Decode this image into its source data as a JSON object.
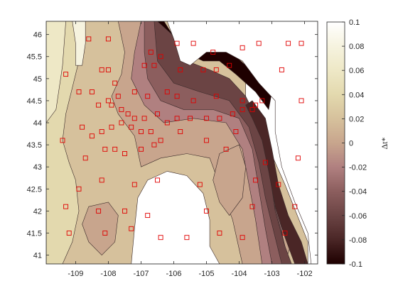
{
  "chart_data": {
    "type": "heatmap",
    "subtype": "filled-contour-map",
    "title": "",
    "xlabel": "",
    "ylabel": "",
    "xlim": [
      -109.9,
      -101.6
    ],
    "ylim": [
      40.8,
      46.3
    ],
    "x_ticks": [
      -109,
      -108,
      -107,
      -106,
      -105,
      -104,
      -103,
      -102
    ],
    "y_ticks": [
      41,
      41.5,
      42,
      42.5,
      43,
      43.5,
      44,
      44.5,
      45,
      45.5,
      46
    ],
    "colorbar": {
      "label": "Δt*",
      "range": [
        -0.1,
        0.1
      ],
      "ticks": [
        0.1,
        0.08,
        0.06,
        0.04,
        0.02,
        0,
        -0.02,
        -0.04,
        -0.06,
        -0.08,
        -0.1
      ],
      "colormap": "pink",
      "stops": [
        {
          "v": -0.1,
          "color": "#1e0000"
        },
        {
          "v": -0.08,
          "color": "#4a2626"
        },
        {
          "v": -0.06,
          "color": "#6b4444"
        },
        {
          "v": -0.04,
          "color": "#8c5e5e"
        },
        {
          "v": -0.02,
          "color": "#b08080"
        },
        {
          "v": 0.0,
          "color": "#c8a58d"
        },
        {
          "v": 0.02,
          "color": "#d6c19c"
        },
        {
          "v": 0.04,
          "color": "#e3d9ae"
        },
        {
          "v": 0.06,
          "color": "#eee8c6"
        },
        {
          "v": 0.08,
          "color": "#f6f3df"
        },
        {
          "v": 0.1,
          "color": "#ffffff"
        }
      ]
    },
    "contour_regions": [
      {
        "name": "background",
        "level": 0.02,
        "poly": [
          [
            -109.9,
            40.8
          ],
          [
            -109.9,
            46.3
          ],
          [
            -103.8,
            46.3
          ],
          [
            -103.8,
            44.5
          ],
          [
            -103.2,
            43.6
          ],
          [
            -102.6,
            42.6
          ],
          [
            -101.9,
            41.3
          ],
          [
            -101.9,
            40.8
          ]
        ]
      },
      {
        "name": "west-light-band",
        "level": 0.04,
        "poly": [
          [
            -109.9,
            40.8
          ],
          [
            -109.9,
            46.3
          ],
          [
            -108.9,
            46.3
          ],
          [
            -108.9,
            45.4
          ],
          [
            -109.1,
            44.8
          ],
          [
            -109.3,
            44.2
          ],
          [
            -109.4,
            43.6
          ],
          [
            -109.2,
            43.1
          ],
          [
            -109.0,
            42.7
          ],
          [
            -108.9,
            42.0
          ],
          [
            -109.1,
            41.3
          ],
          [
            -109.4,
            40.8
          ]
        ]
      },
      {
        "name": "west-lighter-band",
        "level": 0.06,
        "poly": [
          [
            -109.9,
            40.8
          ],
          [
            -109.9,
            46.3
          ],
          [
            -109.3,
            46.3
          ],
          [
            -109.4,
            45.3
          ],
          [
            -109.5,
            44.8
          ],
          [
            -109.6,
            44.3
          ],
          [
            -109.9,
            44.0
          ]
        ]
      },
      {
        "name": "northwest-strip",
        "level": 0.08,
        "poly": [
          [
            -109.1,
            46.3
          ],
          [
            -108.7,
            46.3
          ],
          [
            -108.7,
            45.8
          ],
          [
            -108.8,
            45.3
          ],
          [
            -109.0,
            45.3
          ],
          [
            -109.0,
            45.8
          ]
        ]
      },
      {
        "name": "central-pink",
        "level": 0.0,
        "poly": [
          [
            -107.7,
            46.3
          ],
          [
            -106.6,
            46.3
          ],
          [
            -106.4,
            45.4
          ],
          [
            -105.9,
            44.8
          ],
          [
            -105.1,
            44.7
          ],
          [
            -104.6,
            44.9
          ],
          [
            -104.4,
            44.8
          ],
          [
            -104.0,
            44.5
          ],
          [
            -103.6,
            44.2
          ],
          [
            -103.3,
            43.4
          ],
          [
            -103.0,
            42.5
          ],
          [
            -102.7,
            41.8
          ],
          [
            -102.4,
            41.3
          ],
          [
            -102.6,
            40.8
          ],
          [
            -103.9,
            40.8
          ],
          [
            -104.2,
            41.8
          ],
          [
            -104.6,
            42.6
          ],
          [
            -104.9,
            43.2
          ],
          [
            -105.6,
            43.3
          ],
          [
            -106.4,
            43.2
          ],
          [
            -107.0,
            43.0
          ],
          [
            -107.2,
            43.7
          ],
          [
            -107.7,
            44.2
          ],
          [
            -107.9,
            44.6
          ],
          [
            -107.6,
            45.1
          ],
          [
            -107.5,
            45.6
          ]
        ]
      },
      {
        "name": "north-dark-band",
        "level": -0.02,
        "poly": [
          [
            -107.0,
            46.3
          ],
          [
            -106.6,
            46.3
          ],
          [
            -106.2,
            45.6
          ],
          [
            -105.6,
            45.1
          ],
          [
            -105.0,
            45.0
          ],
          [
            -104.5,
            45.0
          ],
          [
            -104.0,
            44.6
          ],
          [
            -103.5,
            44.1
          ],
          [
            -103.2,
            43.3
          ],
          [
            -103.0,
            42.4
          ],
          [
            -102.7,
            41.6
          ],
          [
            -102.6,
            40.8
          ],
          [
            -103.3,
            40.8
          ],
          [
            -103.5,
            41.8
          ],
          [
            -103.7,
            42.6
          ],
          [
            -103.9,
            43.4
          ],
          [
            -104.4,
            44.0
          ],
          [
            -105.4,
            44.1
          ],
          [
            -106.3,
            44.0
          ],
          [
            -106.9,
            44.4
          ],
          [
            -107.3,
            45.0
          ],
          [
            -107.2,
            45.6
          ]
        ]
      },
      {
        "name": "north-darker-band",
        "level": -0.04,
        "poly": [
          [
            -106.9,
            46.3
          ],
          [
            -106.5,
            46.3
          ],
          [
            -106.0,
            45.5
          ],
          [
            -105.4,
            45.1
          ],
          [
            -104.7,
            45.1
          ],
          [
            -104.2,
            44.8
          ],
          [
            -103.7,
            44.3
          ],
          [
            -103.3,
            43.6
          ],
          [
            -103.1,
            42.6
          ],
          [
            -102.8,
            41.8
          ],
          [
            -102.6,
            41.2
          ],
          [
            -102.7,
            40.8
          ],
          [
            -103.0,
            40.8
          ],
          [
            -103.2,
            41.6
          ],
          [
            -103.4,
            42.5
          ],
          [
            -103.6,
            43.4
          ],
          [
            -104.0,
            44.1
          ],
          [
            -104.8,
            44.3
          ],
          [
            -105.7,
            44.3
          ],
          [
            -106.4,
            44.5
          ],
          [
            -106.8,
            45.0
          ],
          [
            -106.9,
            45.6
          ]
        ]
      },
      {
        "name": "north-darkest-band",
        "level": -0.06,
        "poly": [
          [
            -106.6,
            46.3
          ],
          [
            -106.3,
            46.3
          ],
          [
            -105.6,
            45.4
          ],
          [
            -104.9,
            45.2
          ],
          [
            -104.3,
            45.0
          ],
          [
            -103.8,
            44.6
          ],
          [
            -103.4,
            44.0
          ],
          [
            -103.1,
            43.0
          ],
          [
            -102.9,
            42.0
          ],
          [
            -102.6,
            41.2
          ],
          [
            -102.4,
            40.8
          ],
          [
            -102.7,
            40.8
          ],
          [
            -102.9,
            41.4
          ],
          [
            -103.2,
            42.3
          ],
          [
            -103.4,
            43.1
          ],
          [
            -103.7,
            43.9
          ],
          [
            -104.3,
            44.5
          ],
          [
            -105.2,
            44.7
          ],
          [
            -106.0,
            44.9
          ],
          [
            -106.5,
            45.4
          ]
        ]
      },
      {
        "name": "east-dark-ridge",
        "level": -0.08,
        "poly": [
          [
            -103.6,
            44.5
          ],
          [
            -103.2,
            44.1
          ],
          [
            -103.0,
            43.4
          ],
          [
            -102.8,
            42.6
          ],
          [
            -102.5,
            41.9
          ],
          [
            -102.1,
            41.3
          ],
          [
            -101.9,
            40.8
          ],
          [
            -102.3,
            40.8
          ],
          [
            -102.6,
            41.4
          ],
          [
            -102.9,
            42.1
          ],
          [
            -103.1,
            42.9
          ],
          [
            -103.3,
            43.6
          ],
          [
            -103.6,
            44.1
          ],
          [
            -103.8,
            44.4
          ]
        ]
      },
      {
        "name": "north-black-arc",
        "level": -0.1,
        "poly": [
          [
            -106.5,
            46.3
          ],
          [
            -106.3,
            46.3
          ],
          [
            -105.7,
            45.6
          ],
          [
            -105.1,
            45.4
          ],
          [
            -104.6,
            45.4
          ],
          [
            -104.1,
            45.1
          ],
          [
            -103.5,
            44.7
          ],
          [
            -103.1,
            44.3
          ],
          [
            -103.0,
            44.7
          ],
          [
            -103.5,
            45.1
          ],
          [
            -104.1,
            45.5
          ],
          [
            -104.7,
            45.7
          ],
          [
            -105.3,
            45.7
          ],
          [
            -105.9,
            45.9
          ]
        ]
      },
      {
        "name": "lower-pink-patch",
        "level": 0.0,
        "poly": [
          [
            -108.6,
            42.1
          ],
          [
            -108.0,
            42.2
          ],
          [
            -107.7,
            41.9
          ],
          [
            -107.8,
            41.3
          ],
          [
            -108.2,
            41.0
          ],
          [
            -108.6,
            41.3
          ],
          [
            -108.8,
            41.7
          ]
        ]
      },
      {
        "name": "east-pink-patch",
        "level": 0.0,
        "poly": [
          [
            -104.6,
            43.3
          ],
          [
            -104.0,
            43.5
          ],
          [
            -103.8,
            43.0
          ],
          [
            -103.9,
            42.3
          ],
          [
            -104.3,
            41.9
          ],
          [
            -104.6,
            42.2
          ],
          [
            -104.8,
            42.7
          ]
        ]
      }
    ],
    "white_regions": [
      {
        "name": "northeast-white",
        "poly": [
          [
            -106.2,
            46.3
          ],
          [
            -101.6,
            46.3
          ],
          [
            -101.6,
            40.8
          ],
          [
            -101.8,
            40.8
          ],
          [
            -101.9,
            41.5
          ],
          [
            -102.3,
            42.2
          ],
          [
            -102.7,
            43.0
          ],
          [
            -102.9,
            43.8
          ],
          [
            -102.9,
            44.5
          ],
          [
            -103.4,
            44.9
          ],
          [
            -103.9,
            45.4
          ],
          [
            -104.4,
            45.6
          ],
          [
            -105.0,
            45.6
          ],
          [
            -105.5,
            45.3
          ],
          [
            -105.8,
            45.4
          ],
          [
            -106.0,
            45.9
          ]
        ]
      },
      {
        "name": "southern-white-dome",
        "poly": [
          [
            -107.3,
            40.8
          ],
          [
            -107.2,
            41.6
          ],
          [
            -107.1,
            42.3
          ],
          [
            -106.8,
            42.7
          ],
          [
            -106.2,
            42.9
          ],
          [
            -105.6,
            42.8
          ],
          [
            -105.1,
            42.4
          ],
          [
            -104.9,
            41.8
          ],
          [
            -104.9,
            41.2
          ],
          [
            -104.6,
            40.8
          ]
        ]
      }
    ],
    "stations": [
      [
        -108.6,
        45.9
      ],
      [
        -108.0,
        45.9
      ],
      [
        -106.7,
        45.6
      ],
      [
        -106.4,
        45.5
      ],
      [
        -105.9,
        45.8
      ],
      [
        -105.4,
        45.8
      ],
      [
        -104.8,
        45.6
      ],
      [
        -103.9,
        45.7
      ],
      [
        -103.4,
        45.8
      ],
      [
        -102.5,
        45.8
      ],
      [
        -102.1,
        45.8
      ],
      [
        -109.3,
        45.1
      ],
      [
        -108.2,
        45.2
      ],
      [
        -108.0,
        45.2
      ],
      [
        -106.9,
        45.3
      ],
      [
        -106.6,
        45.3
      ],
      [
        -105.8,
        45.2
      ],
      [
        -105.1,
        45.2
      ],
      [
        -104.7,
        45.2
      ],
      [
        -104.3,
        45.3
      ],
      [
        -102.7,
        45.2
      ],
      [
        -108.9,
        44.7
      ],
      [
        -108.5,
        44.7
      ],
      [
        -107.8,
        44.9
      ],
      [
        -107.7,
        44.6
      ],
      [
        -107.2,
        44.7
      ],
      [
        -106.8,
        44.6
      ],
      [
        -106.2,
        44.7
      ],
      [
        -105.9,
        44.6
      ],
      [
        -105.4,
        44.5
      ],
      [
        -104.7,
        44.6
      ],
      [
        -103.9,
        44.5
      ],
      [
        -103.5,
        44.4
      ],
      [
        -103.3,
        44.5
      ],
      [
        -102.1,
        44.5
      ],
      [
        -108.3,
        44.4
      ],
      [
        -108.0,
        44.5
      ],
      [
        -107.9,
        44.4
      ],
      [
        -107.6,
        44.3
      ],
      [
        -107.4,
        44.2
      ],
      [
        -107.2,
        44.1
      ],
      [
        -106.9,
        44.1
      ],
      [
        -106.5,
        44.2
      ],
      [
        -106.2,
        44.0
      ],
      [
        -105.9,
        44.1
      ],
      [
        -105.5,
        44.1
      ],
      [
        -105.0,
        44.1
      ],
      [
        -104.6,
        44.1
      ],
      [
        -104.2,
        44.2
      ],
      [
        -103.9,
        44.3
      ],
      [
        -103.6,
        44.3
      ],
      [
        -109.4,
        43.6
      ],
      [
        -108.8,
        43.9
      ],
      [
        -108.5,
        43.7
      ],
      [
        -108.2,
        43.8
      ],
      [
        -107.9,
        43.9
      ],
      [
        -107.6,
        44.0
      ],
      [
        -107.3,
        43.9
      ],
      [
        -107.0,
        43.8
      ],
      [
        -106.7,
        43.8
      ],
      [
        -106.4,
        43.6
      ],
      [
        -105.8,
        43.8
      ],
      [
        -105.0,
        43.6
      ],
      [
        -104.1,
        43.8
      ],
      [
        -108.7,
        43.2
      ],
      [
        -108.1,
        43.4
      ],
      [
        -107.8,
        43.4
      ],
      [
        -107.5,
        43.3
      ],
      [
        -107.0,
        43.4
      ],
      [
        -106.6,
        43.5
      ],
      [
        -104.4,
        43.4
      ],
      [
        -103.2,
        43.1
      ],
      [
        -102.2,
        43.2
      ],
      [
        -108.9,
        42.5
      ],
      [
        -108.2,
        42.7
      ],
      [
        -107.2,
        42.6
      ],
      [
        -106.5,
        42.7
      ],
      [
        -105.2,
        42.6
      ],
      [
        -103.5,
        42.7
      ],
      [
        -102.8,
        42.6
      ],
      [
        -109.3,
        42.1
      ],
      [
        -108.3,
        42.0
      ],
      [
        -107.5,
        42.0
      ],
      [
        -106.8,
        41.9
      ],
      [
        -105.0,
        42.0
      ],
      [
        -103.6,
        42.1
      ],
      [
        -102.3,
        42.1
      ],
      [
        -109.2,
        41.5
      ],
      [
        -108.1,
        41.5
      ],
      [
        -107.3,
        41.6
      ],
      [
        -106.4,
        41.4
      ],
      [
        -105.6,
        41.4
      ],
      [
        -104.6,
        41.5
      ],
      [
        -103.9,
        41.4
      ],
      [
        -102.6,
        41.5
      ]
    ]
  }
}
